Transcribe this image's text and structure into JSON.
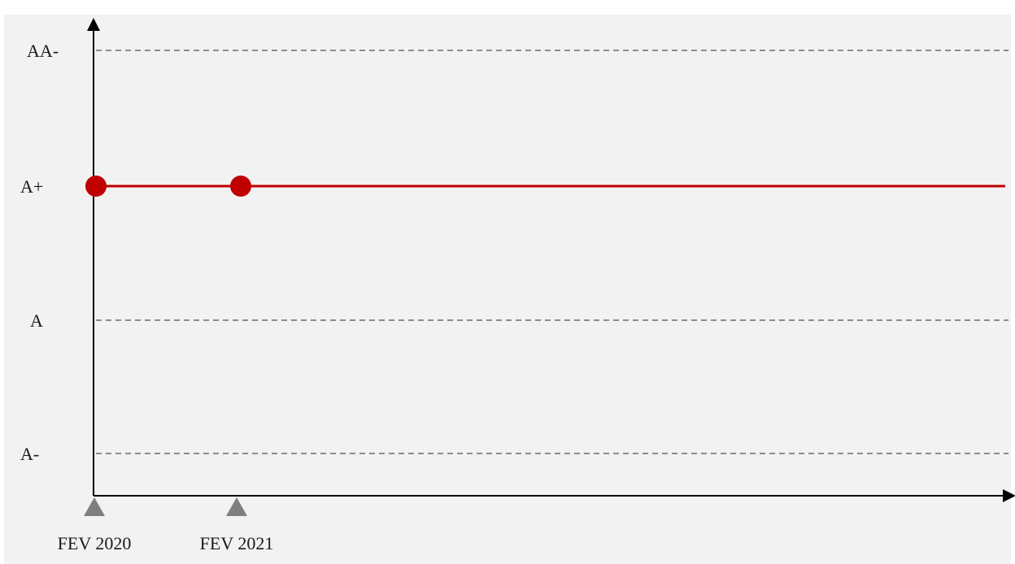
{
  "colors": {
    "background": "#f2f2f2",
    "axis": "#000000",
    "gridline": "#8c8c8c",
    "series": "#c00000",
    "marker_triangle": "#7f7f7f"
  },
  "chart_data": {
    "type": "line",
    "title": "",
    "xlabel": "",
    "ylabel": "",
    "y_categories": [
      "A-",
      "A",
      "A+",
      "AA-"
    ],
    "x_ticks": [
      "FEV 2020",
      "FEV 2021"
    ],
    "points": [
      {
        "x": "FEV 2020",
        "y": "A+"
      },
      {
        "x": "FEV 2021",
        "y": "A+"
      }
    ],
    "line_extends_to_end": true,
    "grid": "dashed horizontal at A-, A, AA-",
    "legend": "none"
  }
}
